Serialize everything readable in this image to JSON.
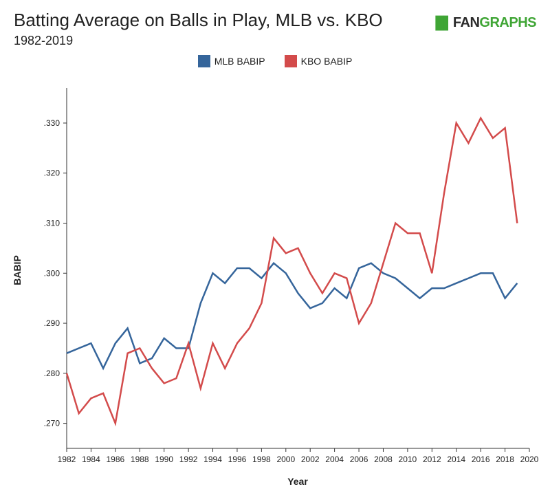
{
  "header": {
    "title": "Batting Average on Balls in Play, MLB vs. KBO",
    "subtitle": "1982-2019",
    "brand_fan": "FAN",
    "brand_graphs": "GRAPHS"
  },
  "colors": {
    "mlb": "#35659b",
    "kbo": "#d34b4b",
    "brand_green": "#3fa535"
  },
  "chart_data": {
    "type": "line",
    "title": "Batting Average on Balls in Play, MLB vs. KBO",
    "subtitle": "1982-2019",
    "xlabel": "Year",
    "ylabel": "BABIP",
    "xlim": [
      1982,
      2020
    ],
    "ylim": [
      0.265,
      0.337
    ],
    "x_ticks": [
      1982,
      1984,
      1986,
      1988,
      1990,
      1992,
      1994,
      1996,
      1998,
      2000,
      2002,
      2004,
      2006,
      2008,
      2010,
      2012,
      2014,
      2016,
      2018,
      2020
    ],
    "y_ticks": [
      0.27,
      0.28,
      0.29,
      0.3,
      0.31,
      0.32,
      0.33
    ],
    "y_tick_labels": [
      ".270",
      ".280",
      ".290",
      ".300",
      ".310",
      ".320",
      ".330"
    ],
    "grid": false,
    "legend_position": "top-center",
    "x": [
      1982,
      1983,
      1984,
      1985,
      1986,
      1987,
      1988,
      1989,
      1990,
      1991,
      1992,
      1993,
      1994,
      1995,
      1996,
      1997,
      1998,
      1999,
      2000,
      2001,
      2002,
      2003,
      2004,
      2005,
      2006,
      2007,
      2008,
      2009,
      2010,
      2011,
      2012,
      2013,
      2014,
      2015,
      2016,
      2017,
      2018,
      2019
    ],
    "series": [
      {
        "name": "MLB BABIP",
        "color": "#35659b",
        "values": [
          0.284,
          0.285,
          0.286,
          0.281,
          0.286,
          0.289,
          0.282,
          0.283,
          0.287,
          0.285,
          0.285,
          0.294,
          0.3,
          0.298,
          0.301,
          0.301,
          0.299,
          0.302,
          0.3,
          0.296,
          0.293,
          0.294,
          0.297,
          0.295,
          0.301,
          0.302,
          0.3,
          0.299,
          0.297,
          0.295,
          0.297,
          0.297,
          0.298,
          0.299,
          0.3,
          0.3,
          0.295,
          0.298
        ]
      },
      {
        "name": "KBO BABIP",
        "color": "#d34b4b",
        "values": [
          0.28,
          0.272,
          0.275,
          0.276,
          0.27,
          0.284,
          0.285,
          0.281,
          0.278,
          0.279,
          0.286,
          0.277,
          0.286,
          0.281,
          0.286,
          0.289,
          0.294,
          0.307,
          0.304,
          0.305,
          0.3,
          0.296,
          0.3,
          0.299,
          0.29,
          0.294,
          0.302,
          0.31,
          0.308,
          0.308,
          0.3,
          0.316,
          0.33,
          0.326,
          0.331,
          0.327,
          0.329,
          0.31
        ]
      }
    ]
  }
}
